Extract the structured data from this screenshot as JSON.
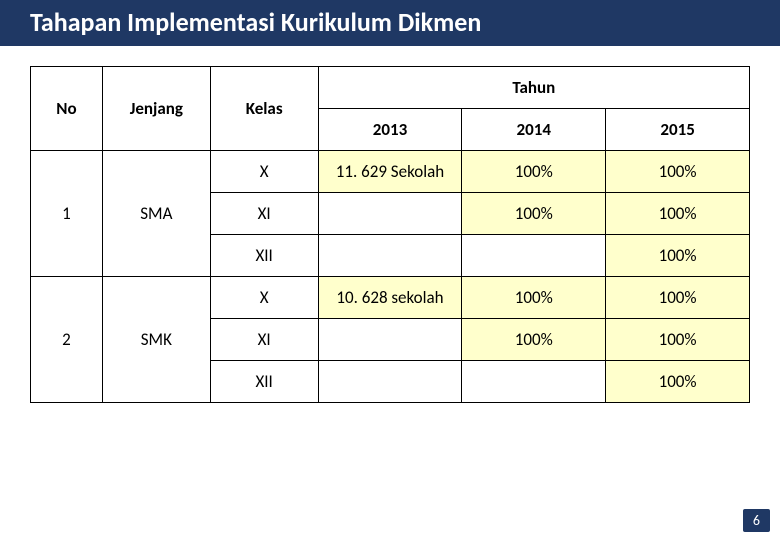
{
  "title": "Tahapan Implementasi Kurikulum Dikmen",
  "headers": {
    "no": "No",
    "jenjang": "Jenjang",
    "kelas": "Kelas",
    "tahun": "Tahun",
    "y2013": "2013",
    "y2014": "2014",
    "y2015": "2015"
  },
  "rows": [
    {
      "no": "1",
      "jenjang": "SMA",
      "kelas": "X",
      "y2013": "11. 629 Sekolah",
      "y2014": "100%",
      "y2015": "100%"
    },
    {
      "no": "",
      "jenjang": "",
      "kelas": "XI",
      "y2013": "",
      "y2014": "100%",
      "y2015": "100%"
    },
    {
      "no": "",
      "jenjang": "",
      "kelas": "XII",
      "y2013": "",
      "y2014": "",
      "y2015": "100%"
    },
    {
      "no": "2",
      "jenjang": "SMK",
      "kelas": "X",
      "y2013": "10. 628 sekolah",
      "y2014": "100%",
      "y2015": "100%"
    },
    {
      "no": "",
      "jenjang": "",
      "kelas": "XI",
      "y2013": "",
      "y2014": "100%",
      "y2015": "100%"
    },
    {
      "no": "",
      "jenjang": "",
      "kelas": "XII",
      "y2013": "",
      "y2014": "",
      "y2015": "100%"
    }
  ],
  "colors": {
    "title_bg": "#1f3864",
    "title_text": "#ffffff",
    "highlight_bg": "#ffffcc",
    "border": "#000000",
    "page_bg": "#ffffff"
  },
  "page_number": "6"
}
